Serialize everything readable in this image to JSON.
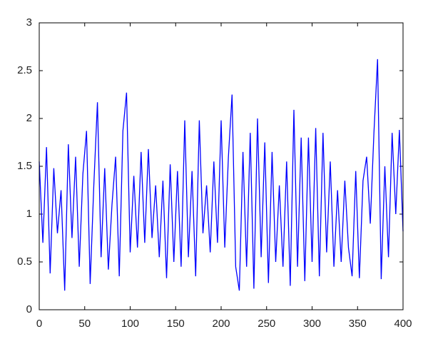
{
  "chart_data": {
    "type": "line",
    "x": [
      0,
      4,
      8,
      12,
      16,
      20,
      24,
      28,
      32,
      36,
      40,
      44,
      48,
      52,
      56,
      60,
      64,
      68,
      72,
      76,
      80,
      84,
      88,
      92,
      96,
      100,
      104,
      108,
      112,
      116,
      120,
      124,
      128,
      132,
      136,
      140,
      144,
      148,
      152,
      156,
      160,
      164,
      168,
      172,
      176,
      180,
      184,
      188,
      192,
      196,
      200,
      204,
      208,
      212,
      216,
      220,
      224,
      228,
      232,
      236,
      240,
      244,
      248,
      252,
      256,
      260,
      264,
      268,
      272,
      276,
      280,
      284,
      288,
      292,
      296,
      300,
      304,
      308,
      312,
      316,
      320,
      324,
      328,
      332,
      336,
      340,
      344,
      348,
      352,
      356,
      360,
      364,
      368,
      372,
      376,
      380,
      384,
      388,
      392,
      396,
      400
    ],
    "series": [
      {
        "color": "#0000ff",
        "values": [
          1.55,
          0.7,
          1.7,
          0.38,
          1.48,
          0.8,
          1.25,
          0.2,
          1.73,
          0.75,
          1.6,
          0.45,
          1.42,
          1.87,
          0.27,
          1.3,
          2.17,
          0.55,
          1.48,
          0.42,
          1.1,
          1.6,
          0.35,
          1.87,
          2.27,
          0.6,
          1.4,
          0.65,
          1.65,
          0.7,
          1.68,
          0.75,
          1.3,
          0.55,
          1.35,
          0.33,
          1.52,
          0.5,
          1.45,
          0.45,
          1.98,
          0.55,
          1.45,
          0.35,
          1.98,
          0.8,
          1.3,
          0.6,
          1.55,
          0.7,
          1.98,
          0.65,
          1.6,
          2.25,
          0.45,
          0.2,
          1.65,
          0.45,
          1.85,
          0.22,
          2.0,
          0.55,
          1.75,
          0.28,
          1.65,
          0.5,
          1.3,
          0.45,
          1.55,
          0.25,
          2.09,
          0.45,
          1.8,
          0.3,
          1.8,
          0.5,
          1.9,
          0.35,
          1.85,
          0.6,
          1.55,
          0.45,
          1.25,
          0.5,
          1.35,
          0.65,
          0.35,
          1.45,
          0.33,
          1.35,
          1.6,
          0.9,
          1.85,
          2.62,
          0.32,
          1.5,
          0.55,
          1.85,
          1.0,
          1.88,
          0.82
        ]
      }
    ],
    "xlim": [
      0,
      400
    ],
    "xticks": [
      0,
      50,
      100,
      150,
      200,
      250,
      300,
      350,
      400
    ],
    "ylim": [
      0,
      3
    ],
    "yticks": [
      0,
      0.5,
      1,
      1.5,
      2,
      2.5,
      3
    ]
  }
}
